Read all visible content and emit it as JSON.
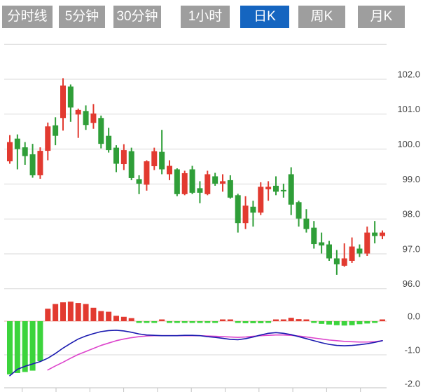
{
  "toolbar": {
    "tabs": [
      {
        "name": "time-share",
        "label": "分时线",
        "active": false
      },
      {
        "name": "5min",
        "label": "5分钟",
        "active": false
      },
      {
        "name": "30min",
        "label": "30分钟",
        "active": false
      },
      {
        "name": "1hour",
        "label": "1小时",
        "active": false
      },
      {
        "name": "daily-k",
        "label": "日K",
        "active": true
      },
      {
        "name": "weekly-k",
        "label": "周K",
        "active": false
      },
      {
        "name": "monthly-k",
        "label": "月K",
        "active": false
      }
    ]
  },
  "chart_data": {
    "type": "candlestick",
    "title": "",
    "legend_position": "none",
    "grid": true,
    "price_panel": {
      "axis_side": "right",
      "y_ticks": [
        "102.0",
        "101.0",
        "100.0",
        "99.0",
        "98.0",
        "97.0",
        "96.0"
      ],
      "y_tick_values": [
        102.0,
        101.0,
        100.0,
        99.0,
        98.0,
        97.0,
        96.0
      ],
      "y_range": [
        95.9,
        103.0
      ],
      "up_means": "close >= open (red, Chinese convention)",
      "ohlc": [
        [
          99.65,
          100.4,
          99.58,
          100.2
        ],
        [
          100.3,
          100.42,
          99.42,
          100.0
        ],
        [
          100.05,
          100.2,
          99.55,
          99.8
        ],
        [
          99.85,
          100.15,
          99.18,
          99.25
        ],
        [
          99.25,
          100.05,
          99.15,
          99.95
        ],
        [
          99.95,
          100.76,
          99.68,
          100.65
        ],
        [
          100.68,
          100.91,
          100.11,
          100.38
        ],
        [
          100.89,
          102.03,
          100.53,
          101.82
        ],
        [
          101.79,
          101.85,
          100.78,
          101.19
        ],
        [
          100.99,
          101.16,
          100.32,
          101.12
        ],
        [
          101.09,
          101.25,
          100.55,
          100.69
        ],
        [
          100.75,
          101.29,
          100.58,
          101.02
        ],
        [
          100.89,
          100.96,
          100.02,
          100.15
        ],
        [
          100.38,
          100.61,
          99.9,
          99.97
        ],
        [
          100.04,
          100.11,
          99.34,
          99.58
        ],
        [
          99.57,
          100.14,
          99.4,
          99.97
        ],
        [
          99.94,
          100.04,
          99.11,
          99.17
        ],
        [
          99.14,
          99.25,
          98.71,
          99.01
        ],
        [
          98.98,
          99.68,
          98.81,
          99.65
        ],
        [
          99.51,
          100.04,
          99.4,
          99.94
        ],
        [
          99.92,
          100.55,
          99.28,
          99.42
        ],
        [
          99.28,
          99.68,
          99.11,
          99.52
        ],
        [
          99.42,
          99.45,
          98.65,
          98.71
        ],
        [
          98.71,
          99.38,
          98.68,
          99.31
        ],
        [
          99.42,
          99.52,
          98.71,
          98.75
        ],
        [
          98.88,
          99.08,
          98.45,
          98.75
        ],
        [
          98.71,
          99.38,
          98.68,
          99.28
        ],
        [
          99.22,
          99.32,
          98.95,
          99.01
        ],
        [
          99.01,
          99.28,
          98.78,
          99.08
        ],
        [
          99.11,
          99.25,
          98.58,
          98.61
        ],
        [
          98.68,
          98.72,
          97.61,
          97.88
        ],
        [
          97.88,
          98.65,
          97.71,
          98.38
        ],
        [
          98.35,
          98.52,
          97.78,
          98.18
        ],
        [
          98.18,
          99.05,
          98.11,
          98.92
        ],
        [
          98.85,
          99.08,
          98.52,
          98.92
        ],
        [
          98.95,
          99.22,
          98.68,
          98.78
        ],
        [
          98.83,
          99.01,
          98.61,
          98.81
        ],
        [
          99.28,
          99.48,
          98.11,
          98.41
        ],
        [
          98.48,
          98.52,
          97.78,
          98.01
        ],
        [
          98.01,
          98.28,
          97.61,
          97.71
        ],
        [
          97.75,
          97.94,
          97.15,
          97.28
        ],
        [
          97.33,
          97.61,
          97.01,
          97.24
        ],
        [
          97.27,
          97.37,
          96.8,
          96.87
        ],
        [
          96.87,
          97.11,
          96.4,
          96.7
        ],
        [
          96.66,
          97.3,
          96.63,
          96.87
        ],
        [
          96.8,
          97.47,
          96.74,
          97.21
        ],
        [
          97.15,
          97.27,
          96.91,
          97.01
        ],
        [
          97.01,
          97.78,
          96.94,
          97.61
        ],
        [
          97.61,
          97.94,
          97.3,
          97.51
        ],
        [
          97.51,
          97.67,
          97.42,
          97.61
        ]
      ]
    },
    "macd_panel": {
      "axis_side": "right",
      "y_ticks": [
        "0.0",
        "-1.0",
        "-2.0"
      ],
      "y_tick_values": [
        0.0,
        -1.0,
        -2.0
      ],
      "y_range": [
        -2.0,
        0.75
      ],
      "histogram": [
        -1.58,
        -1.54,
        -1.51,
        -1.47,
        -1.19,
        0.37,
        0.51,
        0.56,
        0.58,
        0.54,
        0.51,
        0.4,
        0.3,
        0.28,
        0.16,
        0.13,
        0.09,
        -0.03,
        -0.04,
        -0.04,
        0.02,
        -0.01,
        -0.02,
        -0.04,
        -0.05,
        -0.05,
        -0.05,
        -0.04,
        0.01,
        0.02,
        -0.01,
        -0.06,
        -0.06,
        -0.06,
        -0.02,
        0.03,
        0.05,
        0.1,
        0.06,
        0.03,
        -0.04,
        -0.08,
        -0.1,
        -0.12,
        -0.13,
        -0.12,
        -0.09,
        -0.07,
        -0.03,
        0.04
      ],
      "dif_line": [
        -1.62,
        -1.43,
        -1.34,
        -1.27,
        -1.2,
        -1.1,
        -0.96,
        -0.8,
        -0.66,
        -0.53,
        -0.44,
        -0.37,
        -0.31,
        -0.28,
        -0.27,
        -0.29,
        -0.33,
        -0.38,
        -0.41,
        -0.42,
        -0.43,
        -0.43,
        -0.43,
        -0.42,
        -0.42,
        -0.43,
        -0.46,
        -0.48,
        -0.51,
        -0.54,
        -0.55,
        -0.52,
        -0.47,
        -0.41,
        -0.36,
        -0.34,
        -0.36,
        -0.4,
        -0.46,
        -0.52,
        -0.58,
        -0.64,
        -0.69,
        -0.72,
        -0.73,
        -0.72,
        -0.7,
        -0.67,
        -0.63,
        -0.58
      ],
      "dea_start_index": 5,
      "dea_line": [
        -1.45,
        -1.33,
        -1.22,
        -1.1,
        -0.99,
        -0.9,
        -0.81,
        -0.72,
        -0.65,
        -0.58,
        -0.53,
        -0.49,
        -0.46,
        -0.44,
        -0.43,
        -0.43,
        -0.43,
        -0.43,
        -0.43,
        -0.43,
        -0.43,
        -0.44,
        -0.45,
        -0.46,
        -0.47,
        -0.48,
        -0.47,
        -0.45,
        -0.43,
        -0.42,
        -0.41,
        -0.41,
        -0.42,
        -0.44,
        -0.47,
        -0.5,
        -0.53,
        -0.56,
        -0.58,
        -0.6,
        -0.61,
        -0.62,
        -0.62,
        -0.61,
        -0.58
      ]
    },
    "colors": {
      "up": "#e23a30",
      "down": "#2f9e38",
      "hist_up": "#e23a30",
      "hist_down": "#3cd43c",
      "dif_line": "#1b1bb0",
      "dea_line": "#dd44cc",
      "grid": "#d9d9d9",
      "zero_line": "#efb3ad",
      "bottom_axis": "#c2c2c2",
      "axis_text": "#444444",
      "tab_bg": "#9e9e9e",
      "tab_active_bg": "#1565c0",
      "tab_text": "#ffffff"
    }
  }
}
